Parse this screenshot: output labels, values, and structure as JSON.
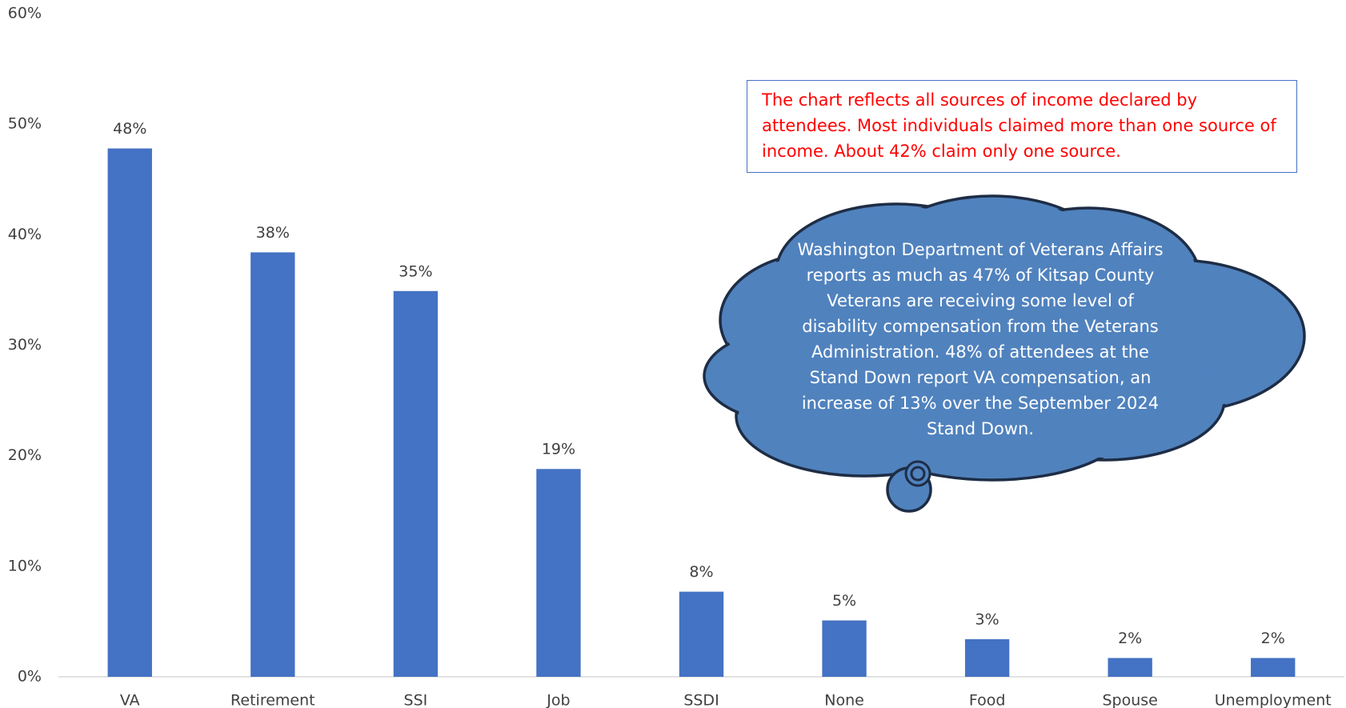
{
  "chart_data": {
    "type": "bar",
    "categories": [
      "VA",
      "Retirement",
      "SSI",
      "Job",
      "SSDI",
      "None",
      "Food",
      "Spouse",
      "Unemployment"
    ],
    "values": [
      47.8,
      38.4,
      34.9,
      18.8,
      7.7,
      5.1,
      3.4,
      1.7,
      1.7
    ],
    "value_labels": [
      "48%",
      "38%",
      "35%",
      "19%",
      "8%",
      "5%",
      "3%",
      "2%",
      "2%"
    ],
    "color": "#4472c4",
    "ylim": [
      0,
      60
    ],
    "yticks": [
      {
        "value": 0,
        "label": "0%"
      },
      {
        "value": 10,
        "label": "10%"
      },
      {
        "value": 20,
        "label": "20%"
      },
      {
        "value": 30,
        "label": "30%"
      },
      {
        "value": 40,
        "label": "40%"
      },
      {
        "value": 50,
        "label": "50%"
      },
      {
        "value": 60,
        "label": "60%"
      }
    ],
    "grid": false,
    "annotations": [
      "The  chart reflects all sources of income declared by attendees.  Most individuals claimed more than one source of income.  About  42% claim only one source.",
      "Washington Department of Veterans Affairs reports as much as 47% of Kitsap County Veterans are receiving some level of disability compensation from the Veterans Administration. 48% of attendees at the Stand Down report VA compensation, an increase of 13% over the September 2024 Stand Down."
    ]
  }
}
